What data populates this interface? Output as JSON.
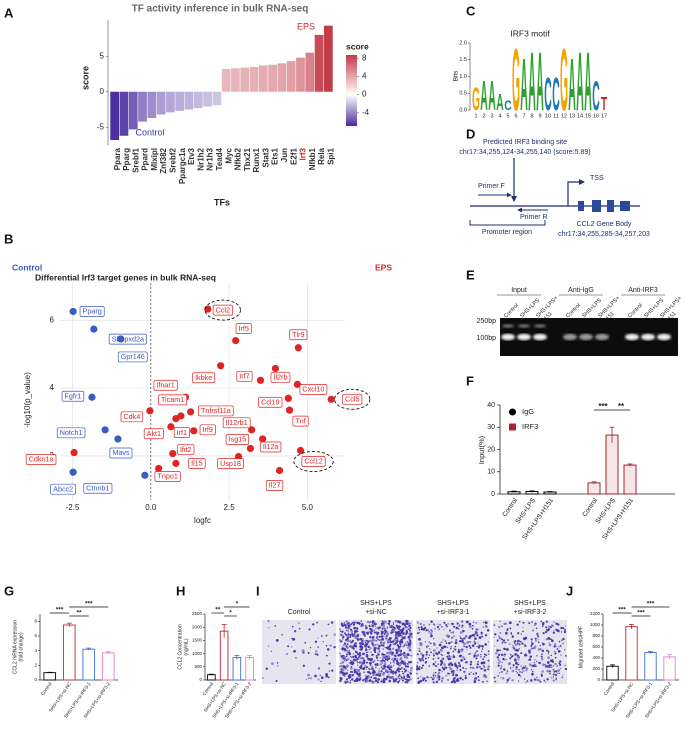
{
  "panel_labels": [
    "A",
    "B",
    "C",
    "D",
    "E",
    "F",
    "G",
    "H",
    "I",
    "J"
  ],
  "chart_data": [
    {
      "type": "bar",
      "title": "TF activity inference in bulk RNA-seq",
      "xlabel": "TFs",
      "ylabel": "score",
      "categories": [
        "Ppara",
        "Pparg",
        "Srebf1",
        "Ppard",
        "Mlxipl",
        "Znf382",
        "Srebf2",
        "Ppargc1a",
        "Etv3",
        "Nr1h2",
        "Nr1h3",
        "Tead4",
        "Myc",
        "Nfkb2",
        "Tbx21",
        "Runx1",
        "Stat3",
        "Ets1",
        "Jun",
        "E2f1",
        "Irf3",
        "Nfkb1",
        "Rela",
        "Spi1"
      ],
      "values": [
        -6.8,
        -6.2,
        -5.3,
        -4.2,
        -3.7,
        -3.2,
        -2.9,
        -2.7,
        -2.5,
        -2.3,
        -2.1,
        -1.9,
        3.2,
        3.3,
        3.4,
        3.5,
        3.7,
        3.8,
        4.0,
        4.3,
        4.8,
        5.5,
        8.0,
        9.3
      ],
      "ylim": [
        -7.5,
        10.1
      ],
      "yticks": [
        -5,
        0,
        5
      ],
      "highlight_index": 20,
      "highlight_color": "#d62728",
      "annotations": [
        "EPS",
        "Control"
      ],
      "annotation_colors": [
        "#d62728",
        "#3a3ab0"
      ],
      "colorbar": {
        "title": "score",
        "ticks": [
          8,
          4,
          0,
          -4
        ],
        "clim": [
          -6.9,
          8.7
        ],
        "colors": [
          "#4a2c9e",
          "#ffffff",
          "#c23b48"
        ]
      }
    },
    {
      "type": "scatter",
      "title": "Differential Irf3 target genes in bulk RNA-seq",
      "xlabel": "logfc",
      "ylabel": "-log10(p_value)",
      "series": [
        {
          "name": "Control",
          "color": "#3a5bbf",
          "names": [
            "Pparg",
            "Sh3pxd2a",
            "Gpr146",
            "Fgfr1",
            "Notch1",
            "Mavs",
            "Abcc2",
            "Ctnnb1"
          ],
          "x": [
            -2.48,
            -1.82,
            -0.96,
            -1.88,
            -1.46,
            -1.05,
            -2.48,
            -0.19
          ],
          "values": [
            6.26,
            5.74,
            5.45,
            3.73,
            2.77,
            2.5,
            1.52,
            1.43
          ]
        },
        {
          "name": "EPS",
          "color": "#e02424",
          "names": [
            "Ccl2",
            "Irf5",
            "Ikbke",
            "Tlr9",
            "Il2rb",
            "Irf7",
            "Cxcl10",
            "Ccl19",
            "Ccl5",
            "Tnf",
            "Ifnar1",
            "Ticam1",
            "Cdk4",
            "Tnfrsf11a",
            "Il12rb1",
            "Akt1",
            "Irf1",
            "Irf9",
            "Isg15",
            "Il12a",
            "Ccl12",
            "Ifit2",
            "Il15",
            "Usp18",
            "Tnpo1",
            "Il27",
            "Cdkn1a"
          ],
          "x": [
            1.82,
            2.71,
            2.23,
            4.71,
            3.98,
            3.5,
            4.68,
            4.39,
            5.76,
            4.43,
            1.11,
            1.27,
            -0.03,
            0.96,
            3.22,
            0.64,
            0.8,
            1.37,
            3.18,
            3.57,
            4.78,
            0.7,
            0.8,
            2.8,
            0.25,
            4.11,
            -2.45
          ],
          "values": [
            6.33,
            5.4,
            4.66,
            5.19,
            4.58,
            4.23,
            4.11,
            3.7,
            3.67,
            3.35,
            3.73,
            3.3,
            3.33,
            3.18,
            2.77,
            2.86,
            3.1,
            2.74,
            2.22,
            2.5,
            2.16,
            2.07,
            1.78,
            1.98,
            1.63,
            1.57,
            2.1
          ],
          "circled_index": [
            0,
            8,
            20
          ]
        }
      ],
      "xlim": [
        -2.9,
        6.2
      ],
      "ylim": [
        0.7,
        7.1
      ],
      "xticks": [
        -2.5,
        {
          "value": 0,
          "label": "0.0"
        },
        2.5,
        {
          "value": 5,
          "label": "5.0"
        }
      ],
      "yticks": [
        2,
        4,
        6
      ],
      "grid": true
    },
    {
      "type": "logo",
      "title": "IRF3 motif",
      "ylabel": "Bits",
      "letters": [
        "G",
        "A",
        "A",
        "A",
        "C",
        "G",
        "A",
        "A",
        "A",
        "C",
        "C",
        "G",
        "A",
        "A",
        "A",
        "C",
        "T"
      ],
      "values": [
        0.7,
        0.9,
        0.9,
        0.5,
        0.3,
        1.9,
        1.6,
        1.8,
        1.8,
        1.0,
        1.0,
        1.9,
        1.6,
        1.8,
        1.8,
        0.9,
        0.4
      ],
      "letter_colors": {
        "A": "#2ca02c",
        "C": "#1f77b4",
        "G": "#f0a500",
        "T": "#d62728"
      },
      "xlim": [
        0.5,
        17.5
      ],
      "xticks": [
        1,
        2,
        3,
        4,
        5,
        6,
        7,
        8,
        9,
        10,
        11,
        12,
        13,
        14,
        15,
        16,
        17
      ],
      "ylim": [
        0,
        2
      ],
      "yticks": [
        {
          "value": 0,
          "label": "0.0"
        },
        0.5,
        {
          "value": 1,
          "label": "1.0"
        },
        1.5,
        {
          "value": 2,
          "label": "2.0"
        }
      ]
    },
    {
      "type": "grouped_bar",
      "ylabel": "Input(%)",
      "categories": [
        "Control",
        "SHS+LPS",
        "SHS+LPS+H151"
      ],
      "series": [
        {
          "name": "IgG",
          "color": "#000000",
          "values": [
            1.0,
            1.1,
            0.9
          ],
          "errors": [
            0.3,
            0.3,
            0.2
          ]
        },
        {
          "name": "IRF3",
          "color": "#a5262f",
          "values": [
            5.0,
            26.5,
            13.0
          ],
          "errors": [
            0.5,
            3.5,
            0.5
          ]
        }
      ],
      "ylim": [
        0,
        40
      ],
      "yticks": [
        0,
        10,
        20,
        30,
        40
      ],
      "significance": [
        {
          "series": 1,
          "pair": [
            0,
            1
          ],
          "label": "***"
        },
        {
          "series": 1,
          "pair": [
            1,
            2
          ],
          "label": "**"
        }
      ]
    },
    {
      "type": "bar_error",
      "ylabel": [
        "CCL2 mRNA expression",
        "(fold change)"
      ],
      "categories": [
        "Control",
        "SHS+LPS+si-NC",
        "SHS+LPS+si-IRF3-1",
        "SHS+LPS+si-IRF3-2"
      ],
      "colors": [
        "#000000",
        "#c0272d",
        "#3b6fd1",
        "#e87dd6"
      ],
      "values": [
        1.0,
        7.5,
        4.2,
        3.7
      ],
      "errors": [
        0.05,
        0.25,
        0.15,
        0.15
      ],
      "ylim": [
        0,
        9
      ],
      "yticks": [
        0,
        2,
        4,
        6,
        8
      ],
      "significance": [
        {
          "pair": [
            0,
            1
          ],
          "label": "***"
        },
        {
          "pair": [
            1,
            2
          ],
          "label": "**"
        },
        {
          "pair": [
            1,
            3
          ],
          "label": "***"
        }
      ]
    },
    {
      "type": "bar_error",
      "ylabel": [
        "CCL2 Concentration",
        "(ng/mL)"
      ],
      "categories": [
        "Control",
        "SHS+LPS+si-NC",
        "SHS+LPS+si-IRF3-1",
        "SHS+LPS+si-IRF3-2"
      ],
      "colors": [
        "#000000",
        "#c0272d",
        "#3b6fd1",
        "#e87dd6"
      ],
      "values": [
        200,
        1850,
        850,
        850
      ],
      "errors": [
        20,
        250,
        80,
        80
      ],
      "ylim": [
        0,
        2500
      ],
      "yticks": [
        0,
        500,
        1000,
        1500,
        2000,
        2500
      ],
      "significance": [
        {
          "pair": [
            0,
            1
          ],
          "label": "**"
        },
        {
          "pair": [
            1,
            2
          ],
          "label": "*"
        },
        {
          "pair": [
            1,
            3
          ],
          "label": "*"
        }
      ]
    },
    {
      "type": "bar_error",
      "ylabel": [
        "Migrated cells/HPF"
      ],
      "categories": [
        "Control",
        "SHS+LPS+si-NC",
        "SHS+LPS+si-IRF3-1",
        "SHS+LPS+si-IRF3-2"
      ],
      "colors": [
        "#000000",
        "#c0272d",
        "#3b6fd1",
        "#e87dd6"
      ],
      "values": [
        250,
        970,
        500,
        420
      ],
      "errors": [
        25,
        40,
        20,
        40
      ],
      "ylim": [
        0,
        1200
      ],
      "yticks": [
        0,
        200,
        400,
        600,
        800,
        1000,
        1200
      ],
      "significance": [
        {
          "pair": [
            0,
            1
          ],
          "label": "***"
        },
        {
          "pair": [
            1,
            2
          ],
          "label": "***"
        },
        {
          "pair": [
            1,
            3
          ],
          "label": "***"
        }
      ]
    }
  ],
  "diagram": {
    "binding_site": "Predicted IRF3 binding site",
    "binding_coords": "chr17:34,255,124-34,255,140 (score:5.89)",
    "primer_f": "Primer F",
    "tss": "TSS",
    "primer_r": "Primer R",
    "promoter": "Promoter region",
    "gene_body": "CCL2 Gene Body",
    "gene_coords": "chr17:34,255,285-34,257,203"
  },
  "gel": {
    "groups": [
      "Input",
      "Anti-IgG",
      "Anti-IRF3"
    ],
    "lanes": [
      [
        "Control"
      ],
      [
        "SHS+LPS"
      ],
      [
        "SHS+LPS+",
        "H151"
      ]
    ],
    "markers": [
      "250bp",
      "100bp"
    ]
  },
  "images": {
    "captions": [
      [
        "Control"
      ],
      [
        "SHS+LPS",
        "+si-NC"
      ],
      [
        "SHS+LPS",
        "+si-IRF3-1"
      ],
      [
        "SHS+LPS",
        "+si-IRF3-2"
      ]
    ]
  }
}
